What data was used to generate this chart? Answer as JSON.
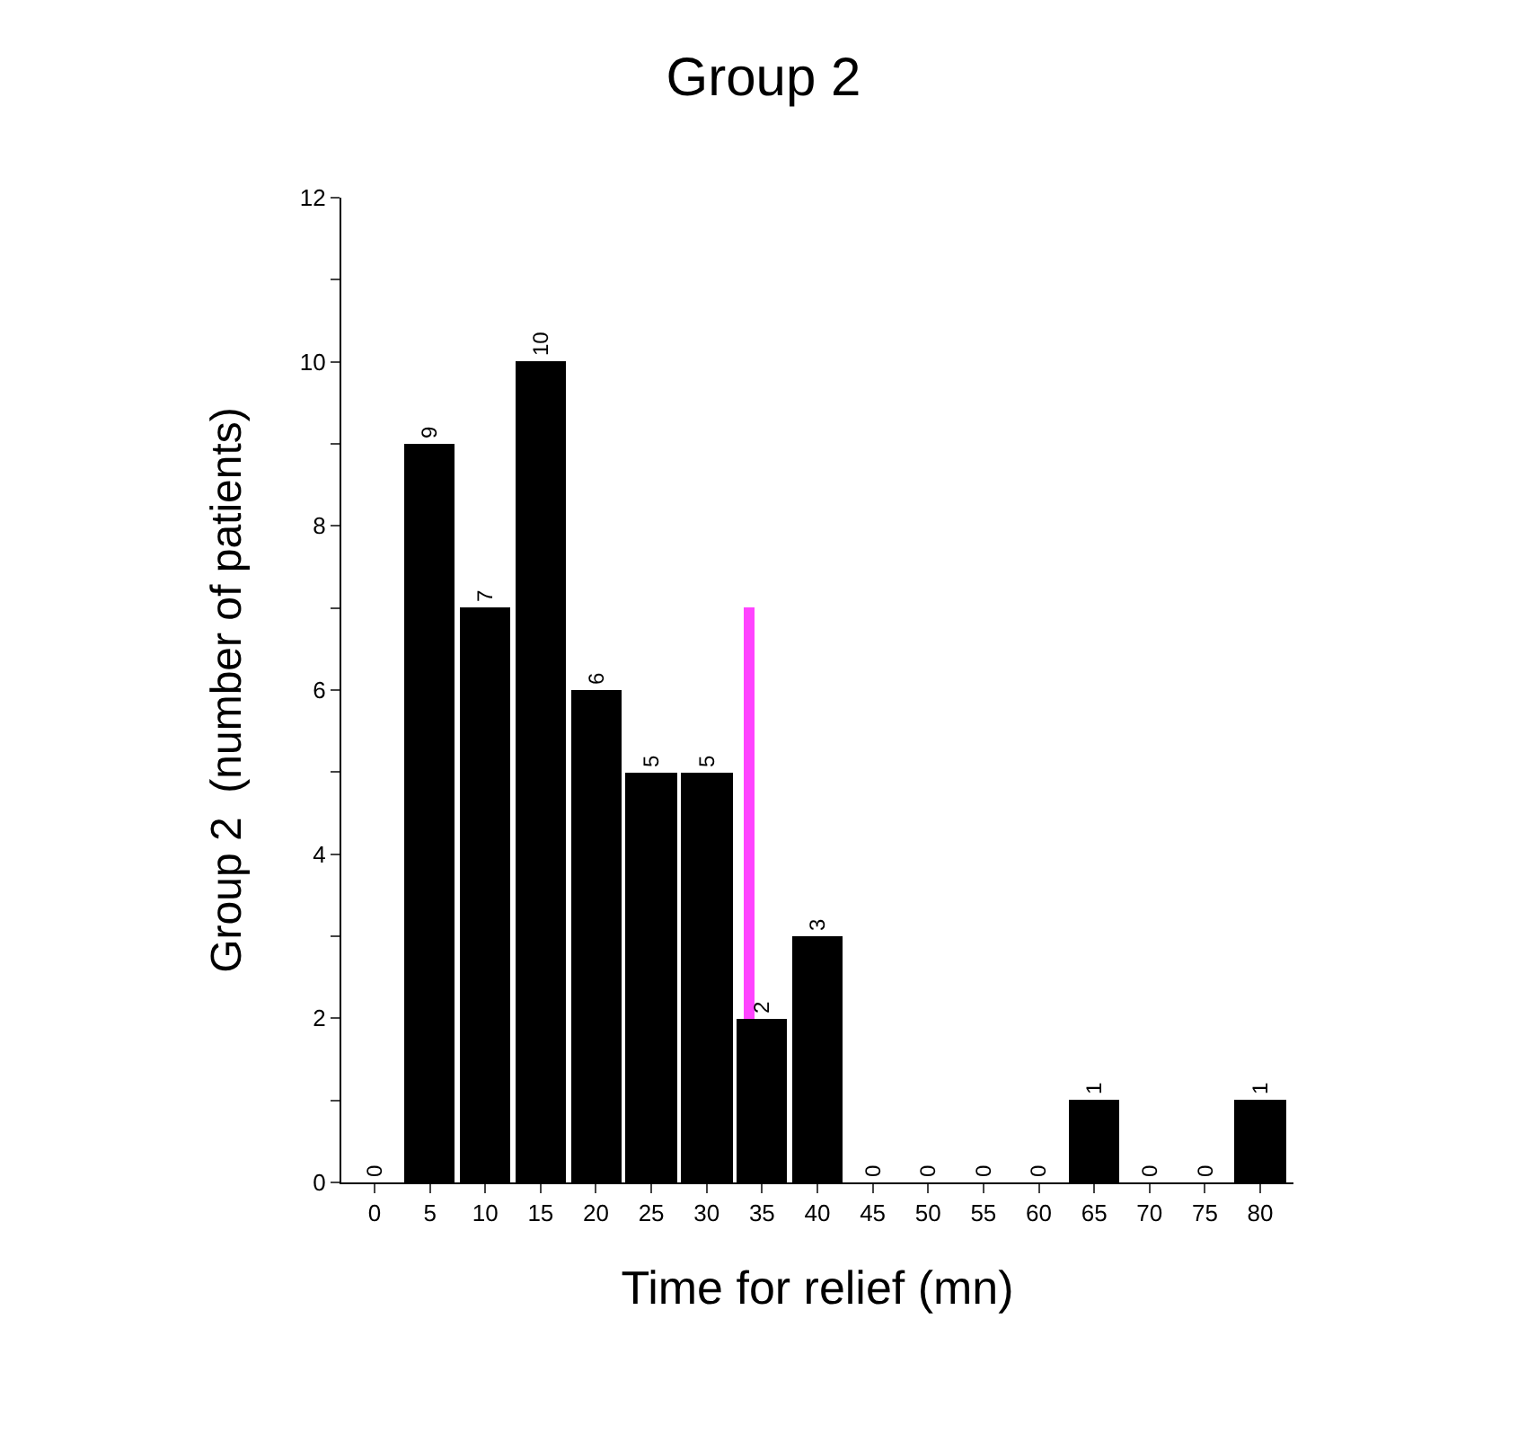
{
  "chart_data": {
    "type": "bar",
    "title": "Group 2",
    "xlabel": "Time for relief (mn)",
    "ylabel": "Group 2  (number of patients)",
    "series": [
      {
        "x": [
          0,
          5,
          10,
          15,
          20,
          25,
          30,
          35,
          40,
          45,
          50,
          55,
          60,
          65,
          70,
          75,
          80
        ],
        "values": [
          0,
          9,
          7,
          10,
          6,
          5,
          5,
          2,
          3,
          0,
          0,
          0,
          0,
          1,
          0,
          0,
          1
        ],
        "color": "#000000",
        "data_labels": true
      },
      {
        "x": [
          33.9
        ],
        "base": [
          1.1
        ],
        "values": [
          5.9
        ],
        "color": "#ff44ff"
      }
    ],
    "xlim": [
      -3,
      83
    ],
    "xticks": [
      0,
      5,
      10,
      15,
      20,
      25,
      30,
      35,
      40,
      45,
      50,
      55,
      60,
      65,
      70,
      75,
      80
    ],
    "ylim": [
      0,
      12
    ],
    "yticks": [
      0,
      {
        "value": 1,
        "label": null
      },
      2,
      {
        "value": 3,
        "label": null
      },
      4,
      {
        "value": 5,
        "label": null
      },
      6,
      {
        "value": 7,
        "label": null
      },
      8,
      {
        "value": 9,
        "label": null
      },
      10,
      {
        "value": 11,
        "label": null
      },
      12
    ],
    "tick_labels": "xy"
  }
}
